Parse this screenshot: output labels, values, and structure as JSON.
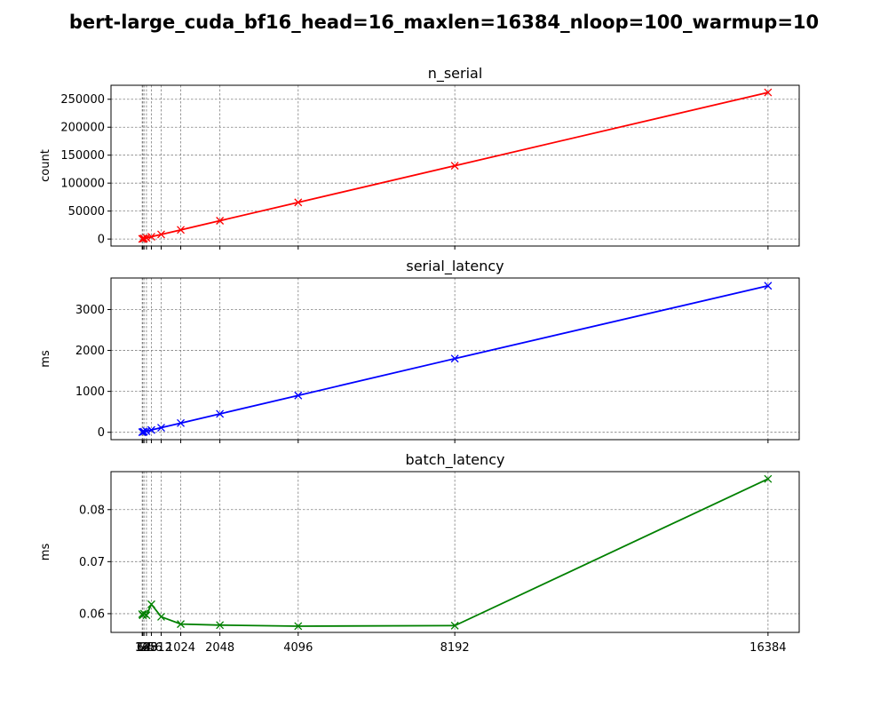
{
  "chart_data": {
    "suptitle": "bert-large_cuda_bf16_head=16_maxlen=16384_nloop=100_warmup=10",
    "x": [
      16,
      32,
      64,
      128,
      256,
      512,
      1024,
      2048,
      4096,
      8192,
      16384
    ],
    "xticklabels": [
      "16",
      "32",
      "64",
      "128",
      "256",
      "512",
      "1024",
      "2048",
      "4096",
      "8192",
      "16384"
    ],
    "xlim": [
      -800,
      17200
    ],
    "grid": true,
    "subplots": [
      {
        "type": "line",
        "title": "n_serial",
        "ylabel": "count",
        "color": "#ff0000",
        "marker": "x",
        "ylim": [
          -12500,
          275000
        ],
        "yticks": [
          0,
          50000,
          100000,
          150000,
          200000,
          250000
        ],
        "values": [
          256,
          512,
          1024,
          2048,
          4096,
          8192,
          16384,
          32768,
          65536,
          131072,
          262144
        ]
      },
      {
        "type": "line",
        "title": "serial_latency",
        "ylabel": "ms",
        "color": "#0000ff",
        "marker": "x",
        "ylim": [
          -180,
          3770
        ],
        "yticks": [
          0,
          1000,
          2000,
          3000
        ],
        "values": [
          3.5,
          7,
          14,
          28,
          56,
          112,
          225,
          450,
          900,
          1800,
          3580
        ]
      },
      {
        "type": "line",
        "title": "batch_latency",
        "ylabel": "ms",
        "color": "#008000",
        "marker": "x",
        "ylim": [
          0.0564,
          0.0873
        ],
        "yticks": [
          0.06,
          0.07,
          0.08
        ],
        "values": [
          0.0599,
          0.0597,
          0.06,
          0.0597,
          0.0618,
          0.0594,
          0.058,
          0.0578,
          0.0576,
          0.0577,
          0.0859
        ]
      }
    ]
  }
}
